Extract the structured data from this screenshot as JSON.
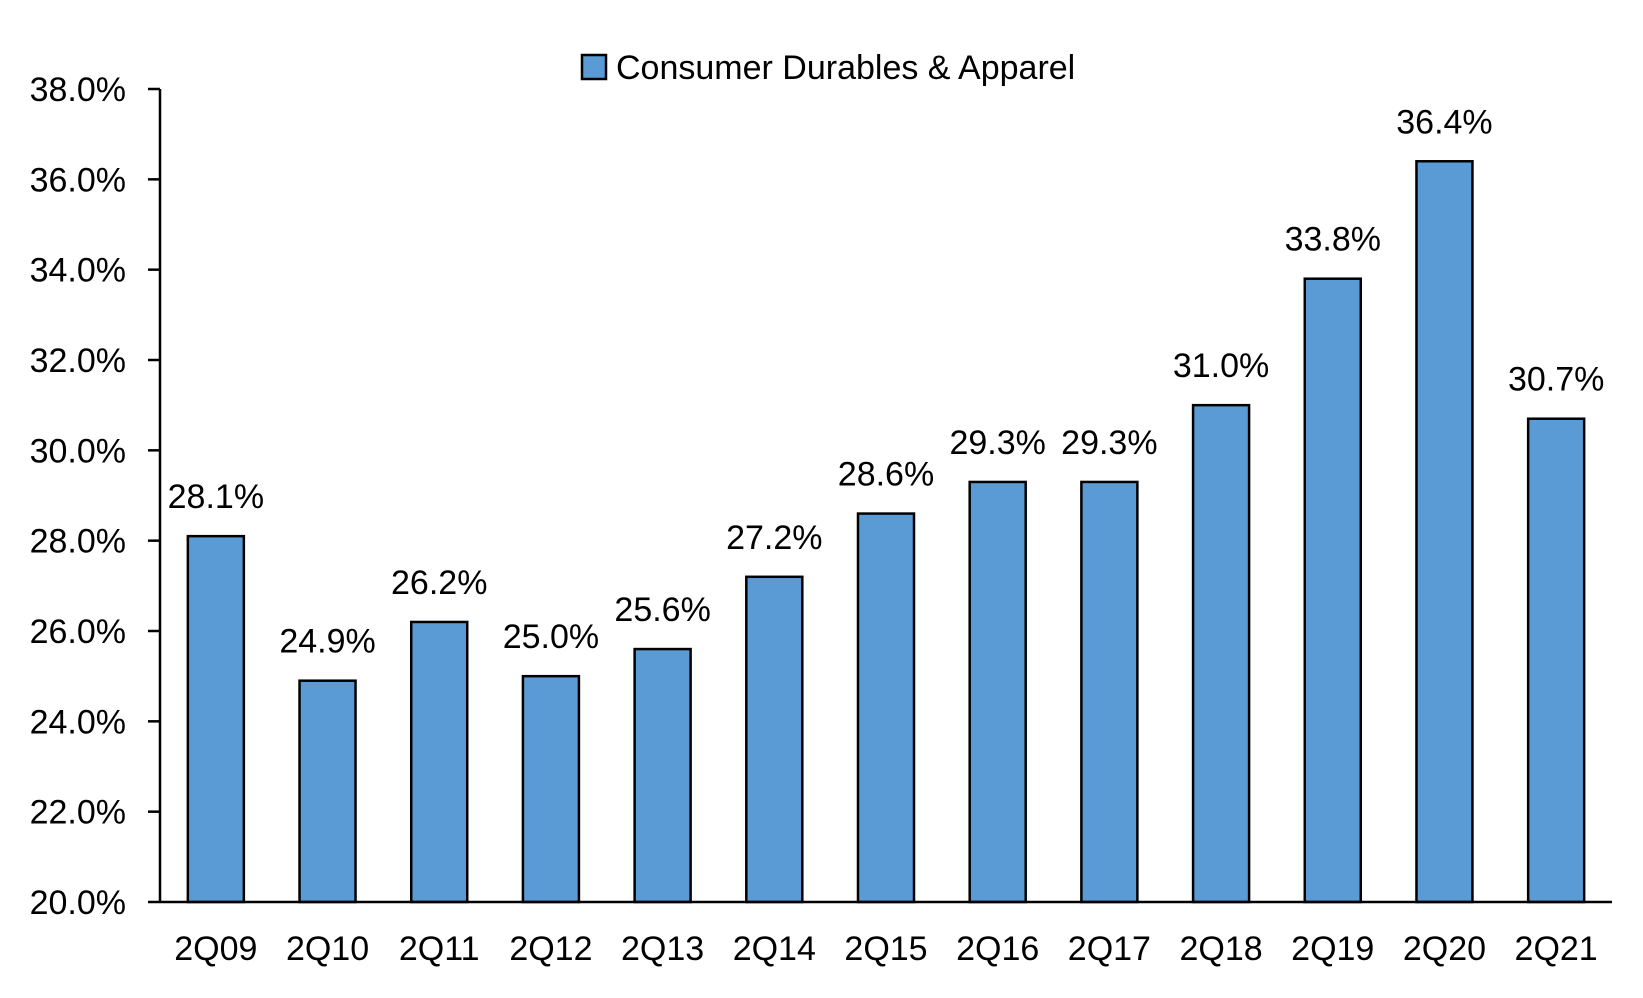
{
  "chart_data": {
    "type": "bar",
    "title": "",
    "xlabel": "",
    "ylabel": "",
    "categories": [
      "2Q09",
      "2Q10",
      "2Q11",
      "2Q12",
      "2Q13",
      "2Q14",
      "2Q15",
      "2Q16",
      "2Q17",
      "2Q18",
      "2Q19",
      "2Q20",
      "2Q21"
    ],
    "series": [
      {
        "name": "Consumer Durables & Apparel",
        "values": [
          28.1,
          24.9,
          26.2,
          25.0,
          25.6,
          27.2,
          28.6,
          29.3,
          29.3,
          31.0,
          33.8,
          36.4,
          30.7
        ],
        "data_labels": [
          "28.1%",
          "24.9%",
          "26.2%",
          "25.0%",
          "25.6%",
          "27.2%",
          "28.6%",
          "29.3%",
          "29.3%",
          "31.0%",
          "33.8%",
          "36.4%",
          "30.7%"
        ],
        "color": "#5B9BD5",
        "edge_color": "#000000"
      }
    ],
    "ylim": [
      20.0,
      38.0
    ],
    "yticks": [
      20.0,
      22.0,
      24.0,
      26.0,
      28.0,
      30.0,
      32.0,
      34.0,
      36.0,
      38.0
    ],
    "ytick_labels": [
      "20.0%",
      "22.0%",
      "24.0%",
      "26.0%",
      "28.0%",
      "30.0%",
      "32.0%",
      "34.0%",
      "36.0%",
      "38.0%"
    ],
    "grid": false,
    "legend": {
      "position": "top-center",
      "entries": [
        "Consumer Durables & Apparel"
      ]
    }
  }
}
